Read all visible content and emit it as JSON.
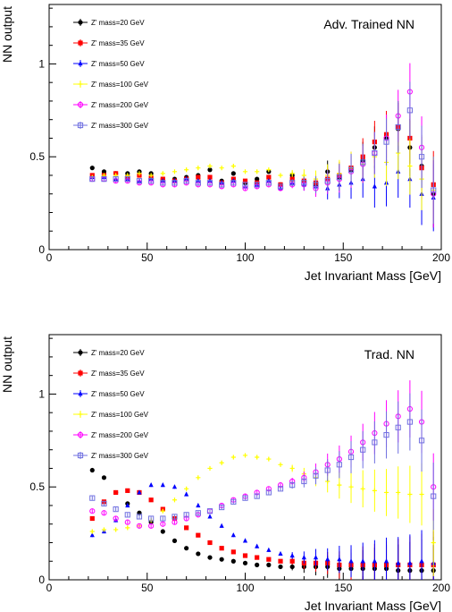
{
  "chart_data": [
    {
      "type": "scatter",
      "annotation": "Adv. Trained NN",
      "xlabel": "Jet Invariant Mass [GeV]",
      "ylabel": "NN output",
      "xlim": [
        0,
        200
      ],
      "ylim": [
        0,
        1.32
      ],
      "xticks": [
        0,
        50,
        100,
        150,
        200
      ],
      "yticks": [
        0,
        0.5,
        1
      ],
      "xtick_labels": [
        "0",
        "50",
        "100",
        "150",
        "200"
      ],
      "ytick_labels": [
        "0",
        "0.5",
        "1"
      ],
      "legend_position": "top-left",
      "grid": false,
      "series": [
        {
          "name": "Z' mass=20 GeV",
          "color": "#000000",
          "marker": "circle",
          "x": [
            22,
            28,
            34,
            40,
            46,
            52,
            58,
            64,
            70,
            76,
            82,
            88,
            94,
            100,
            106,
            112,
            118,
            124,
            130,
            136,
            142,
            148,
            154,
            160,
            166,
            172,
            178,
            184,
            190,
            196
          ],
          "y": [
            0.44,
            0.42,
            0.41,
            0.41,
            0.42,
            0.41,
            0.38,
            0.38,
            0.39,
            0.4,
            0.43,
            0.37,
            0.41,
            0.36,
            0.38,
            0.42,
            0.35,
            0.4,
            0.37,
            0.35,
            0.42,
            0.39,
            0.43,
            0.48,
            0.55,
            0.6,
            0.65,
            0.55,
            0.45,
            0.3
          ]
        },
        {
          "name": "Z' mass=35 GeV",
          "color": "#ff0000",
          "marker": "square",
          "x": [
            22,
            28,
            34,
            40,
            46,
            52,
            58,
            64,
            70,
            76,
            82,
            88,
            94,
            100,
            106,
            112,
            118,
            124,
            130,
            136,
            142,
            148,
            154,
            160,
            166,
            172,
            178,
            184,
            190,
            196
          ],
          "y": [
            0.4,
            0.4,
            0.41,
            0.39,
            0.4,
            0.39,
            0.38,
            0.37,
            0.38,
            0.39,
            0.39,
            0.36,
            0.38,
            0.37,
            0.36,
            0.39,
            0.35,
            0.38,
            0.37,
            0.36,
            0.38,
            0.4,
            0.44,
            0.5,
            0.58,
            0.62,
            0.66,
            0.6,
            0.44,
            0.35
          ]
        },
        {
          "name": "Z' mass=50 GeV",
          "color": "#0000ff",
          "marker": "triangle",
          "x": [
            22,
            28,
            34,
            40,
            46,
            52,
            58,
            64,
            70,
            76,
            82,
            88,
            94,
            100,
            106,
            112,
            118,
            124,
            130,
            136,
            142,
            148,
            154,
            160,
            166,
            172,
            178,
            184,
            190,
            196
          ],
          "y": [
            0.39,
            0.39,
            0.38,
            0.38,
            0.37,
            0.38,
            0.37,
            0.37,
            0.38,
            0.37,
            0.37,
            0.36,
            0.37,
            0.34,
            0.35,
            0.37,
            0.33,
            0.36,
            0.35,
            0.34,
            0.33,
            0.35,
            0.36,
            0.38,
            0.34,
            0.36,
            0.42,
            0.38,
            0.3,
            0.28
          ]
        },
        {
          "name": "Z' mass=100 GeV",
          "color": "#ffff00",
          "marker": "cross",
          "x": [
            22,
            28,
            34,
            40,
            46,
            52,
            58,
            64,
            70,
            76,
            82,
            88,
            94,
            100,
            106,
            112,
            118,
            124,
            130,
            136,
            142,
            148,
            154,
            160,
            166,
            172,
            178,
            184,
            190,
            196
          ],
          "y": [
            0.39,
            0.4,
            0.4,
            0.4,
            0.41,
            0.4,
            0.41,
            0.42,
            0.43,
            0.44,
            0.45,
            0.44,
            0.45,
            0.42,
            0.42,
            0.43,
            0.4,
            0.41,
            0.4,
            0.38,
            0.4,
            0.41,
            0.44,
            0.46,
            0.5,
            0.47,
            0.52,
            0.45,
            0.38,
            0.32
          ]
        },
        {
          "name": "Z' mass=200 GeV",
          "color": "#ff00ff",
          "marker": "open-circle",
          "x": [
            22,
            28,
            34,
            40,
            46,
            52,
            58,
            64,
            70,
            76,
            82,
            88,
            94,
            100,
            106,
            112,
            118,
            124,
            130,
            136,
            142,
            148,
            154,
            160,
            166,
            172,
            178,
            184,
            190,
            196
          ],
          "y": [
            0.38,
            0.38,
            0.37,
            0.37,
            0.36,
            0.36,
            0.35,
            0.35,
            0.36,
            0.35,
            0.35,
            0.34,
            0.35,
            0.33,
            0.34,
            0.35,
            0.33,
            0.35,
            0.35,
            0.33,
            0.36,
            0.38,
            0.42,
            0.46,
            0.52,
            0.6,
            0.72,
            0.85,
            0.55,
            0.3
          ]
        },
        {
          "name": "Z' mass=300 GeV",
          "color": "#7070e0",
          "marker": "open-square",
          "x": [
            22,
            28,
            34,
            40,
            46,
            52,
            58,
            64,
            70,
            76,
            82,
            88,
            94,
            100,
            106,
            112,
            118,
            124,
            130,
            136,
            142,
            148,
            154,
            160,
            166,
            172,
            178,
            184,
            190,
            196
          ],
          "y": [
            0.38,
            0.38,
            0.38,
            0.38,
            0.37,
            0.37,
            0.36,
            0.36,
            0.37,
            0.36,
            0.36,
            0.35,
            0.36,
            0.35,
            0.35,
            0.36,
            0.34,
            0.36,
            0.36,
            0.35,
            0.37,
            0.39,
            0.43,
            0.47,
            0.52,
            0.58,
            0.66,
            0.75,
            0.5,
            0.32
          ]
        }
      ]
    },
    {
      "type": "scatter",
      "annotation": "Trad. NN",
      "xlabel": "Jet Invariant Mass [GeV]",
      "ylabel": "NN output",
      "xlim": [
        0,
        200
      ],
      "ylim": [
        0,
        1.32
      ],
      "xticks": [
        0,
        50,
        100,
        150,
        200
      ],
      "yticks": [
        0,
        0.5,
        1
      ],
      "xtick_labels": [
        "0",
        "50",
        "100",
        "150",
        "200"
      ],
      "ytick_labels": [
        "0",
        "0.5",
        "1"
      ],
      "legend_position": "top-left",
      "grid": false,
      "series": [
        {
          "name": "Z' mass=20 GeV",
          "color": "#000000",
          "marker": "circle",
          "x": [
            22,
            28,
            34,
            40,
            46,
            52,
            58,
            64,
            70,
            76,
            82,
            88,
            94,
            100,
            106,
            112,
            118,
            124,
            130,
            136,
            142,
            148,
            154,
            160,
            166,
            172,
            178,
            184,
            190,
            196
          ],
          "y": [
            0.59,
            0.55,
            0.47,
            0.41,
            0.36,
            0.31,
            0.26,
            0.21,
            0.17,
            0.14,
            0.12,
            0.11,
            0.1,
            0.09,
            0.08,
            0.08,
            0.07,
            0.07,
            0.07,
            0.07,
            0.07,
            0.06,
            0.06,
            0.06,
            0.06,
            0.06,
            0.05,
            0.05,
            0.05,
            0.05
          ]
        },
        {
          "name": "Z' mass=35 GeV",
          "color": "#ff0000",
          "marker": "square",
          "x": [
            22,
            28,
            34,
            40,
            46,
            52,
            58,
            64,
            70,
            76,
            82,
            88,
            94,
            100,
            106,
            112,
            118,
            124,
            130,
            136,
            142,
            148,
            154,
            160,
            166,
            172,
            178,
            184,
            190,
            196
          ],
          "y": [
            0.33,
            0.42,
            0.47,
            0.48,
            0.47,
            0.43,
            0.38,
            0.33,
            0.28,
            0.24,
            0.2,
            0.17,
            0.15,
            0.13,
            0.12,
            0.11,
            0.1,
            0.1,
            0.09,
            0.09,
            0.09,
            0.08,
            0.08,
            0.08,
            0.08,
            0.08,
            0.08,
            0.08,
            0.08,
            0.08
          ]
        },
        {
          "name": "Z' mass=50 GeV",
          "color": "#0000ff",
          "marker": "triangle",
          "x": [
            22,
            28,
            34,
            40,
            46,
            52,
            58,
            64,
            70,
            76,
            82,
            88,
            94,
            100,
            106,
            112,
            118,
            124,
            130,
            136,
            142,
            148,
            154,
            160,
            166,
            172,
            178,
            184,
            190,
            196
          ],
          "y": [
            0.24,
            0.26,
            0.32,
            0.4,
            0.47,
            0.51,
            0.51,
            0.5,
            0.46,
            0.4,
            0.34,
            0.29,
            0.24,
            0.21,
            0.18,
            0.16,
            0.14,
            0.13,
            0.12,
            0.12,
            0.11,
            0.11,
            0.1,
            0.1,
            0.1,
            0.1,
            0.09,
            0.09,
            0.1,
            0.09
          ]
        },
        {
          "name": "Z' mass=100 GeV",
          "color": "#ffff00",
          "marker": "cross",
          "x": [
            22,
            28,
            34,
            40,
            46,
            52,
            58,
            64,
            70,
            76,
            82,
            88,
            94,
            100,
            106,
            112,
            118,
            124,
            130,
            136,
            142,
            148,
            154,
            160,
            166,
            172,
            178,
            184,
            190,
            196
          ],
          "y": [
            0.26,
            0.27,
            0.27,
            0.28,
            0.29,
            0.32,
            0.37,
            0.43,
            0.49,
            0.55,
            0.6,
            0.63,
            0.66,
            0.67,
            0.66,
            0.65,
            0.62,
            0.6,
            0.57,
            0.55,
            0.53,
            0.51,
            0.5,
            0.49,
            0.48,
            0.47,
            0.47,
            0.46,
            0.46,
            0.2
          ]
        },
        {
          "name": "Z' mass=200 GeV",
          "color": "#ff00ff",
          "marker": "open-circle",
          "x": [
            22,
            28,
            34,
            40,
            46,
            52,
            58,
            64,
            70,
            76,
            82,
            88,
            94,
            100,
            106,
            112,
            118,
            124,
            130,
            136,
            142,
            148,
            154,
            160,
            166,
            172,
            178,
            184,
            190,
            196
          ],
          "y": [
            0.37,
            0.36,
            0.33,
            0.31,
            0.29,
            0.29,
            0.3,
            0.31,
            0.33,
            0.35,
            0.37,
            0.4,
            0.43,
            0.45,
            0.47,
            0.49,
            0.51,
            0.53,
            0.55,
            0.58,
            0.62,
            0.65,
            0.69,
            0.74,
            0.79,
            0.84,
            0.88,
            0.92,
            0.85,
            0.5
          ]
        },
        {
          "name": "Z' mass=300 GeV",
          "color": "#7070e0",
          "marker": "open-square",
          "x": [
            22,
            28,
            34,
            40,
            46,
            52,
            58,
            64,
            70,
            76,
            82,
            88,
            94,
            100,
            106,
            112,
            118,
            124,
            130,
            136,
            142,
            148,
            154,
            160,
            166,
            172,
            178,
            184,
            190,
            196
          ],
          "y": [
            0.44,
            0.41,
            0.38,
            0.35,
            0.34,
            0.33,
            0.33,
            0.34,
            0.35,
            0.36,
            0.37,
            0.39,
            0.42,
            0.44,
            0.45,
            0.47,
            0.49,
            0.51,
            0.53,
            0.56,
            0.59,
            0.62,
            0.66,
            0.7,
            0.74,
            0.78,
            0.82,
            0.85,
            0.75,
            0.45
          ]
        }
      ]
    }
  ]
}
